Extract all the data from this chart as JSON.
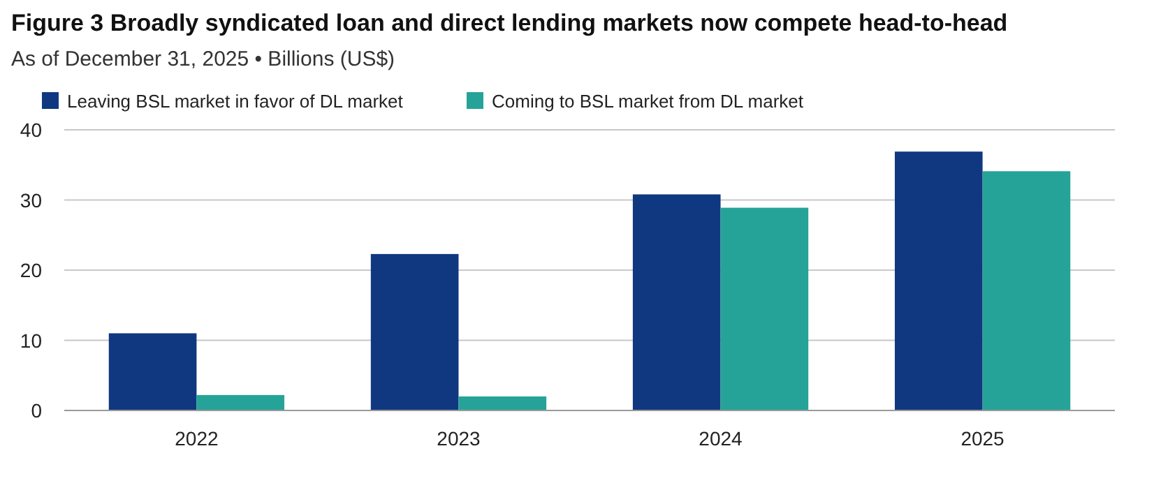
{
  "chart_data": {
    "type": "bar",
    "title": "Figure 3   Broadly syndicated loan and direct lending markets now compete head-to-head",
    "subtitle": "As of December 31, 2025 • Billions (US$)",
    "categories": [
      "2022",
      "2023",
      "2024",
      "2025"
    ],
    "series": [
      {
        "name": "Leaving BSL market in favor of DL market",
        "color": "#0f3880",
        "values": [
          11,
          22.3,
          30.8,
          36.9
        ]
      },
      {
        "name": "Coming to BSL market from DL market",
        "color": "#26a398",
        "values": [
          2.2,
          2,
          28.9,
          34.1
        ]
      }
    ],
    "ylim": [
      0,
      40
    ],
    "yticks": [
      0,
      10,
      20,
      30,
      40
    ],
    "grid": "y",
    "legend": "top left"
  }
}
